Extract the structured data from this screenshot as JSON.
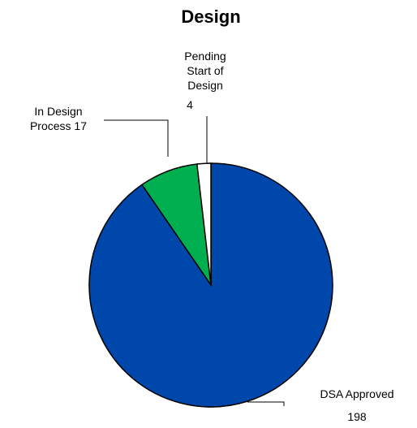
{
  "chart_data": {
    "type": "pie",
    "title": "Design",
    "slices": [
      {
        "name": "DSA Approved",
        "value": 198,
        "color": "#0047AB"
      },
      {
        "name": "In Design Process",
        "value": 17,
        "color": "#00B050"
      },
      {
        "name": "Pending Start of Design",
        "value": 4,
        "color": "#FFFFFF"
      }
    ],
    "labels": {
      "dsa_name": "DSA Approved",
      "dsa_value": "198",
      "design_line1": "In Design",
      "design_line2": "Process 17",
      "pending_line1": "Pending",
      "pending_line2": "Start of",
      "pending_line3": "Design",
      "pending_value": "4"
    }
  }
}
